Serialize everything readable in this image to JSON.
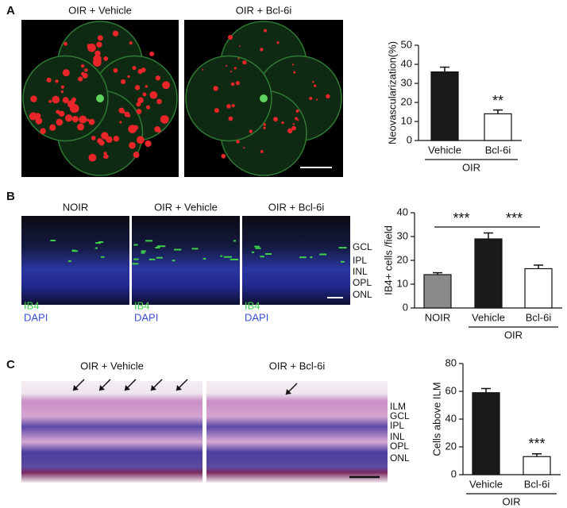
{
  "panels": [
    {
      "label": "A",
      "image_titles": [
        "OIR + Vehicle",
        "OIR + Bcl-6i"
      ]
    },
    {
      "label": "B",
      "image_titles": [
        "NOIR",
        "OIR + Vehicle",
        "OIR + Bcl-6i"
      ],
      "layer_labels": [
        "GCL",
        "IPL",
        "INL",
        "OPL",
        "ONL"
      ],
      "stain_labels": [
        "IB4",
        "DAPI"
      ]
    },
    {
      "label": "C",
      "image_titles": [
        "OIR + Vehicle",
        "OIR + Bcl-6i"
      ],
      "layer_labels": [
        "ILM",
        "GCL",
        "IPL",
        "INL",
        "OPL",
        "ONL"
      ]
    }
  ],
  "chart_data": [
    {
      "type": "bar",
      "y_label": "Neovascularization(%)",
      "categories": [
        "Vehicle",
        "Bcl-6i"
      ],
      "values": [
        36,
        14
      ],
      "errors": [
        2.5,
        2
      ],
      "colors": [
        "#1a1a1a",
        "#ffffff"
      ],
      "group_label": "OIR",
      "annotations": [
        "**"
      ],
      "ylim": [
        0,
        50
      ],
      "yticks": [
        0,
        10,
        20,
        30,
        40,
        50
      ]
    },
    {
      "type": "bar",
      "y_label": "IB4+ cells /field",
      "categories": [
        "NOIR",
        "Vehicle",
        "Bcl-6i"
      ],
      "values": [
        14,
        29,
        16.5
      ],
      "errors": [
        0.8,
        2.5,
        1.5
      ],
      "colors": [
        "#8a8a8a",
        "#1a1a1a",
        "#ffffff"
      ],
      "group_label": "OIR",
      "annotations": [
        "***",
        "***"
      ],
      "ylim": [
        0,
        40
      ],
      "yticks": [
        0,
        10,
        20,
        30,
        40
      ]
    },
    {
      "type": "bar",
      "y_label": "Cells above ILM",
      "categories": [
        "Vehicle",
        "Bcl-6i"
      ],
      "values": [
        59,
        13
      ],
      "errors": [
        3,
        2
      ],
      "colors": [
        "#1a1a1a",
        "#ffffff"
      ],
      "group_label": "OIR",
      "annotations": [
        "***"
      ],
      "ylim": [
        0,
        80
      ],
      "yticks": [
        0,
        20,
        40,
        60,
        80
      ]
    }
  ]
}
